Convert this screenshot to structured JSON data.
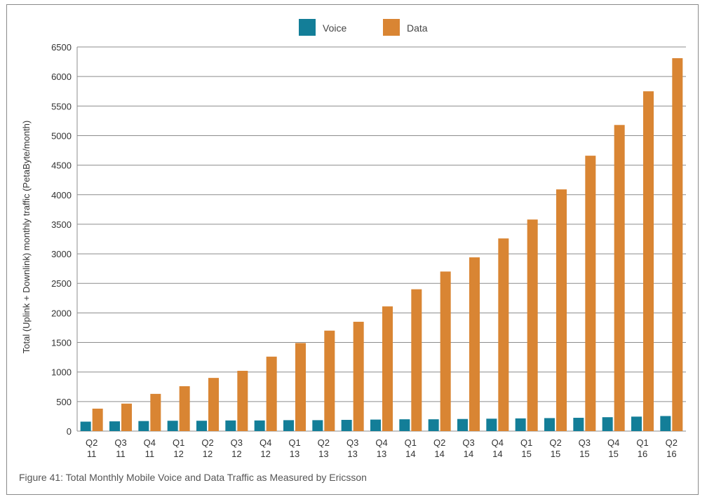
{
  "caption": "Figure 41: Total Monthly Mobile Voice and Data Traffic as Measured by Ericsson",
  "colors": {
    "voice": "#137e98",
    "data": "#d98533",
    "grid": "#8c8c8c",
    "text": "#333333"
  },
  "chart_data": {
    "type": "bar",
    "title": "",
    "xlabel": "",
    "ylabel": "Total (Uplink + Downlink) monthly traffic (PetaByte/month)",
    "ylim": [
      0,
      6500
    ],
    "yticks": [
      0,
      500,
      1000,
      1500,
      2000,
      2500,
      3000,
      3500,
      4000,
      4500,
      5000,
      5500,
      6000,
      6500
    ],
    "grid": true,
    "legend_position": "top-center",
    "categories": [
      [
        "Q2",
        "11"
      ],
      [
        "Q3",
        "11"
      ],
      [
        "Q4",
        "11"
      ],
      [
        "Q1",
        "12"
      ],
      [
        "Q2",
        "12"
      ],
      [
        "Q3",
        "12"
      ],
      [
        "Q4",
        "12"
      ],
      [
        "Q1",
        "13"
      ],
      [
        "Q2",
        "13"
      ],
      [
        "Q3",
        "13"
      ],
      [
        "Q4",
        "13"
      ],
      [
        "Q1",
        "14"
      ],
      [
        "Q2",
        "14"
      ],
      [
        "Q3",
        "14"
      ],
      [
        "Q4",
        "14"
      ],
      [
        "Q1",
        "15"
      ],
      [
        "Q2",
        "15"
      ],
      [
        "Q3",
        "15"
      ],
      [
        "Q4",
        "15"
      ],
      [
        "Q1",
        "16"
      ],
      [
        "Q2",
        "16"
      ]
    ],
    "series": [
      {
        "name": "Voice",
        "values": [
          160,
          165,
          170,
          175,
          175,
          180,
          180,
          185,
          185,
          190,
          195,
          200,
          200,
          205,
          210,
          215,
          220,
          225,
          235,
          245,
          255
        ]
      },
      {
        "name": "Data",
        "values": [
          380,
          465,
          630,
          760,
          900,
          1020,
          1260,
          1490,
          1700,
          1850,
          2110,
          2400,
          2700,
          2940,
          3260,
          3580,
          4090,
          4660,
          5180,
          5750,
          6310
        ]
      }
    ]
  }
}
